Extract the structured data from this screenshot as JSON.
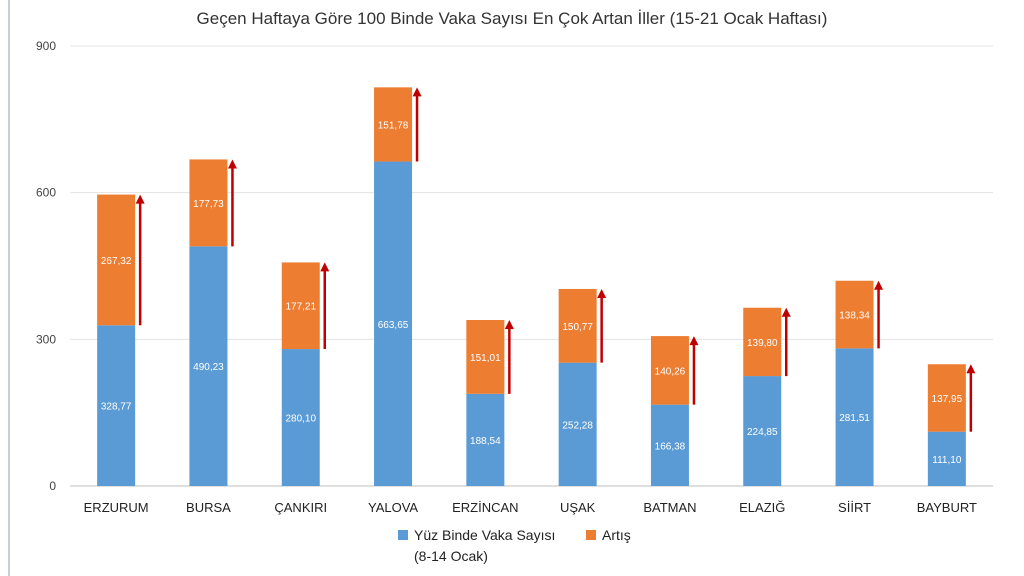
{
  "chart_data": {
    "type": "bar",
    "stacked": true,
    "title": "Geçen Haftaya Göre 100 Binde Vaka Sayısı En Çok Artan İller (15-21 Ocak Haftası)",
    "categories": [
      "ERZURUM",
      "BURSA",
      "ÇANKIRI",
      "YALOVA",
      "ERZİNCAN",
      "UŞAK",
      "BATMAN",
      "ELAZIĞ",
      "SİİRT",
      "BAYBURT"
    ],
    "series": [
      {
        "name": "Yüz Binde Vaka Sayısı",
        "name_line2": "(8-14 Ocak)",
        "color": "#5b9bd5",
        "values": [
          328.77,
          490.23,
          280.1,
          663.65,
          188.54,
          252.28,
          166.38,
          224.85,
          281.51,
          111.1
        ],
        "labels": [
          "328,77",
          "490,23",
          "280,10",
          "663,65",
          "188,54",
          "252,28",
          "166,38",
          "224,85",
          "281,51",
          "111,10"
        ]
      },
      {
        "name": "Artış",
        "color": "#ed7d31",
        "values": [
          267.32,
          177.73,
          177.21,
          151.78,
          151.01,
          150.77,
          140.26,
          139.8,
          138.34,
          137.95
        ],
        "labels": [
          "267,32",
          "177,73",
          "177,21",
          "151,78",
          "151,01",
          "150,77",
          "140,26",
          "139,80",
          "138,34",
          "137,95"
        ]
      }
    ],
    "ylim": [
      0,
      900
    ],
    "yticks": [
      "0",
      "300",
      "600",
      "900"
    ],
    "grid": true,
    "legend": "bottom",
    "arrow_color": "#c00000"
  }
}
